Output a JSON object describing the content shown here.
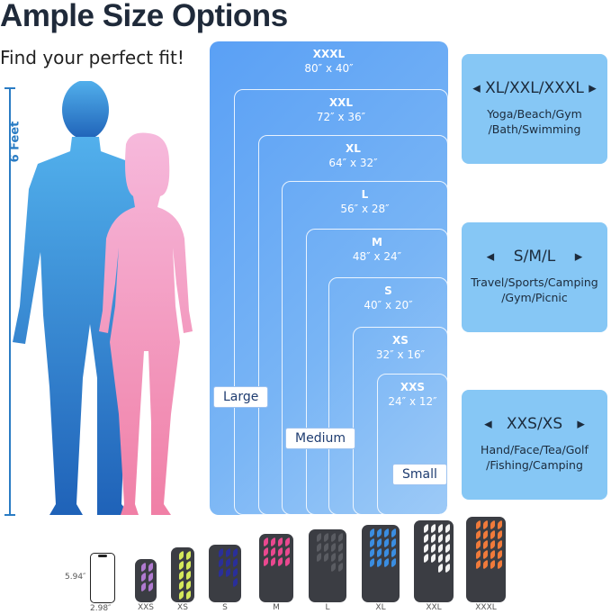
{
  "heading": {
    "title": "Ample Size Options",
    "subtitle": "Find your perfect fit!",
    "height_label": "6 Feet"
  },
  "sizes": [
    {
      "name": "XXXL",
      "dims": "80″ x 40″"
    },
    {
      "name": "XXL",
      "dims": "72″ x 36″"
    },
    {
      "name": "XL",
      "dims": "64″ x 32″"
    },
    {
      "name": "L",
      "dims": "56″ x 28″"
    },
    {
      "name": "M",
      "dims": "48″ x 24″"
    },
    {
      "name": "S",
      "dims": "40″ x 20″"
    },
    {
      "name": "XS",
      "dims": "32″ x 16″"
    },
    {
      "name": "XXS",
      "dims": "24″ x 12″"
    }
  ],
  "groups": {
    "large": "Large",
    "medium": "Medium",
    "small": "Small"
  },
  "cards": [
    {
      "title": "◂ XL/XXL/XXXL ▸",
      "desc": "Yoga/Beach/Gym /Bath/Swimming"
    },
    {
      "title": "◂    S/M/L    ▸",
      "desc": "Travel/Sports/Camping /Gym/Picnic"
    },
    {
      "title": "◂   XXS/XS   ▸",
      "desc": "Hand/Face/Tea/Golf /Fishing/Camping"
    }
  ],
  "phone": {
    "height": "5.94″",
    "width": "2.98″"
  },
  "towels": [
    {
      "label": "XXS",
      "color": "#b07ad0"
    },
    {
      "label": "XS",
      "color": "#d4e85a"
    },
    {
      "label": "S",
      "color": "#2a2f9a"
    },
    {
      "label": "M",
      "color": "#e9488f"
    },
    {
      "label": "L",
      "color": "#5a5c62"
    },
    {
      "label": "XL",
      "color": "#3a8de0"
    },
    {
      "label": "XXL",
      "color": "#f2f2f2"
    },
    {
      "label": "XXXL",
      "color": "#f07a3a"
    }
  ]
}
